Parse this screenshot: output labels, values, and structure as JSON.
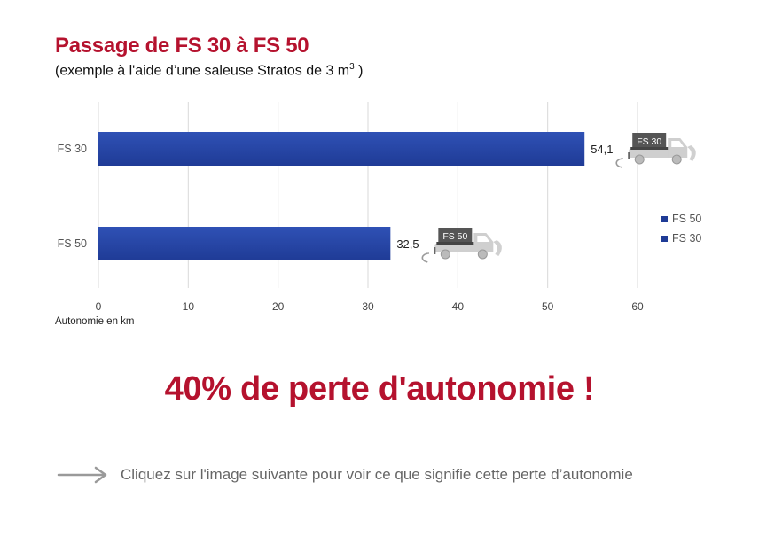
{
  "header": {
    "title": "Passage de FS 30 à FS 50",
    "subtitle_main": "(exemple à l'aide d’une saleuse Stratos de 3 m",
    "subtitle_sup": "3",
    "subtitle_end": " )"
  },
  "chart_data": {
    "type": "bar",
    "orientation": "horizontal",
    "categories": [
      "FS 30",
      "FS 50"
    ],
    "values": [
      54.1,
      32.5
    ],
    "value_labels": [
      "54,1",
      "32,5"
    ],
    "xlabel": "Autonomie en km",
    "xlim": [
      0,
      60
    ],
    "xticks": [
      0,
      10,
      20,
      30,
      40,
      50,
      60
    ],
    "grid": true,
    "legend": [
      "FS 50",
      "FS 30"
    ],
    "legend_position": "right",
    "bar_color": "#1f3b96",
    "truck_labels": [
      "FS 30",
      "FS 50"
    ]
  },
  "headline": "40% de perte d'autonomie !",
  "cta": {
    "text": "Cliquez sur l'image suivante pour voir ce que signifie cette perte d’autonomie",
    "icon": "arrow-right-icon"
  },
  "colors": {
    "accent": "#b5122e",
    "bar": "#1f3b96",
    "truck": "#c8c8c8",
    "truck_box": "#555555"
  }
}
